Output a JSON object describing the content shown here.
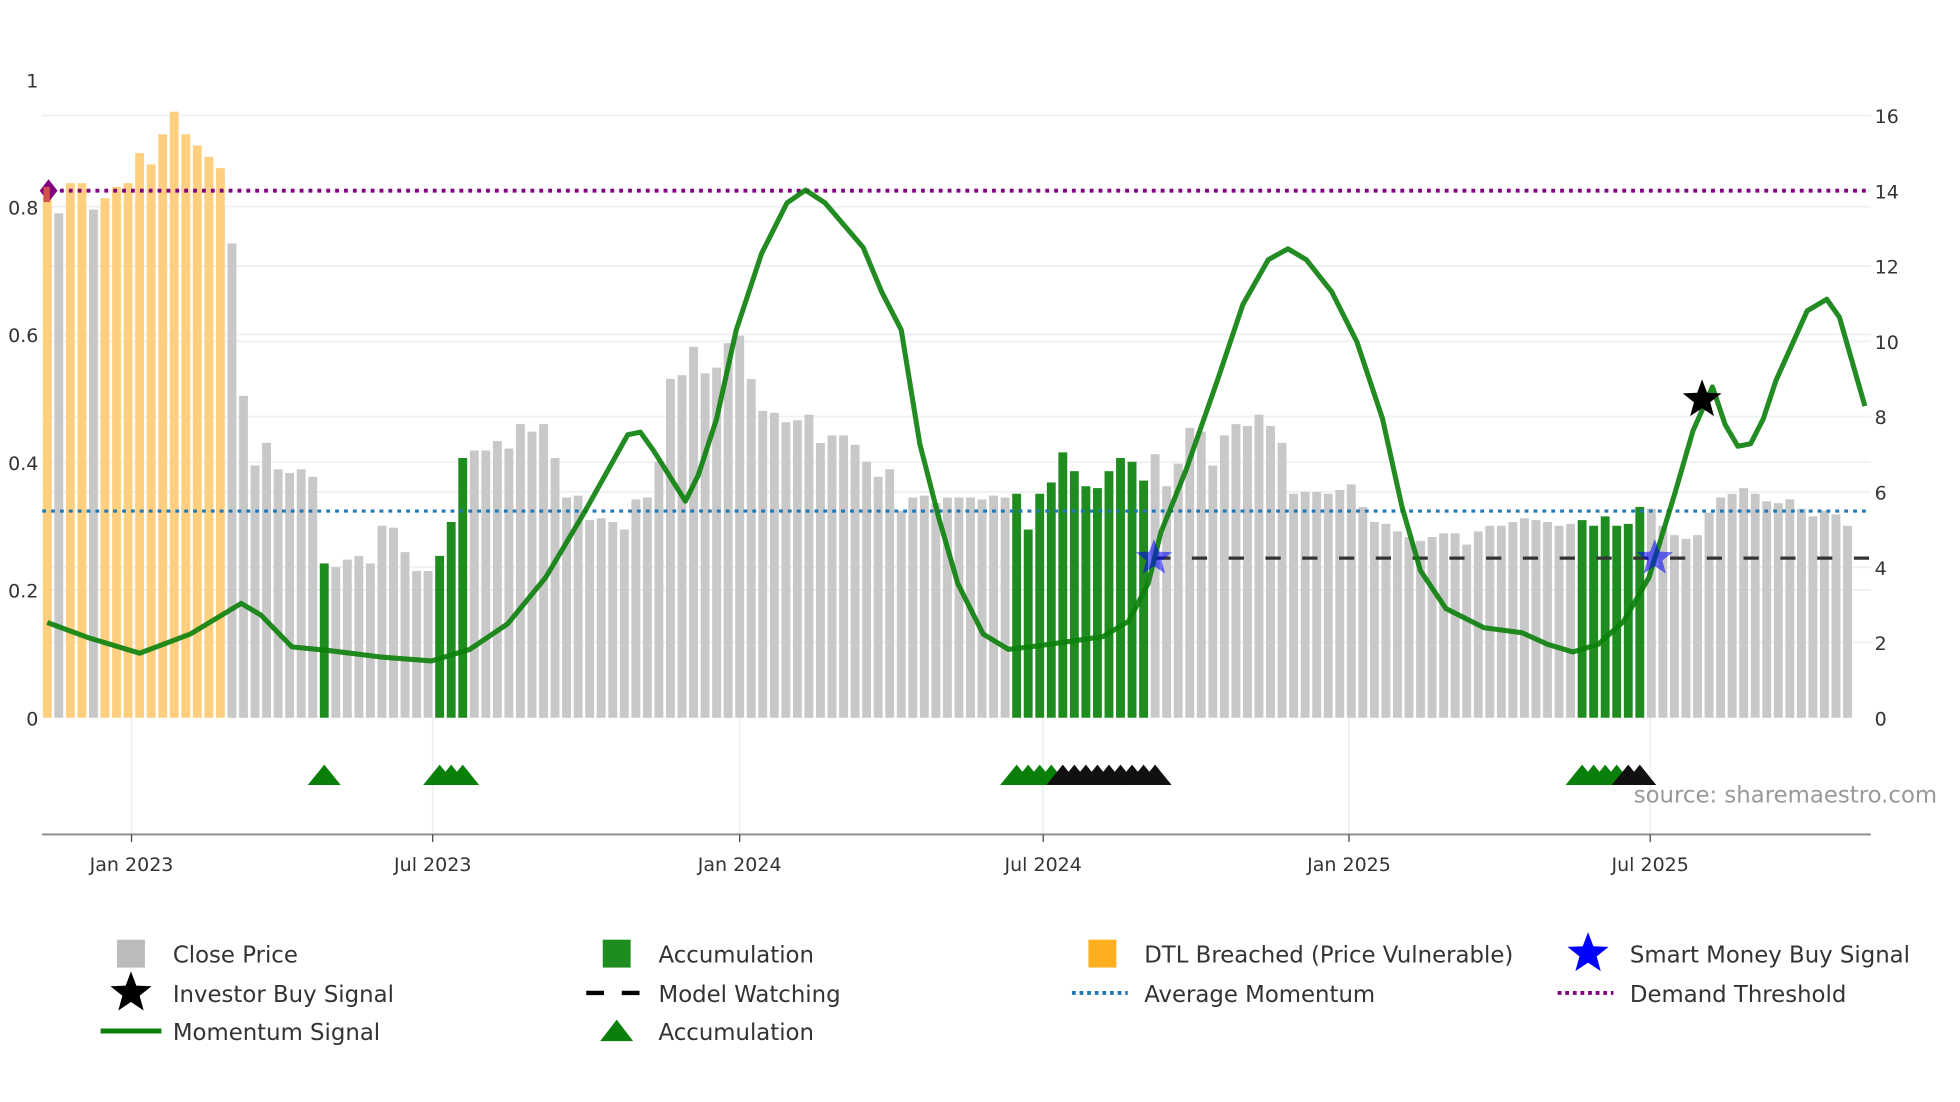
{
  "chart_data": {
    "type": "bar",
    "title": "",
    "x_unit": "week index",
    "left_axis": {
      "ylim": [
        0,
        1
      ],
      "ticks": [
        "0",
        "0.2",
        "0.4",
        "0.6",
        "0.8",
        "1"
      ]
    },
    "right_axis": {
      "ylim": [
        0,
        16
      ],
      "ticks": [
        "0",
        "2",
        "4",
        "6",
        "8",
        "10",
        "12",
        "14",
        "16"
      ]
    },
    "x_ticks": [
      "Jan 2023",
      "Jul 2023",
      "Jan 2024",
      "Jul 2024",
      "Jan 2025",
      "Jul 2025"
    ],
    "x_tick_positions": [
      7.3,
      33.4,
      60.0,
      86.3,
      112.8,
      138.9
    ],
    "grid": true,
    "close_price": [
      14.0,
      13.4,
      14.2,
      14.2,
      13.5,
      13.8,
      14.1,
      14.2,
      15.0,
      14.7,
      15.5,
      16.1,
      15.5,
      15.2,
      14.9,
      14.6,
      12.6,
      8.55,
      6.7,
      7.3,
      6.6,
      6.5,
      6.6,
      6.4,
      4.1,
      4.0,
      4.2,
      4.3,
      4.1,
      5.1,
      5.05,
      4.4,
      3.9,
      3.9,
      4.3,
      5.2,
      6.9,
      7.1,
      7.1,
      7.35,
      7.15,
      7.8,
      7.6,
      7.8,
      6.9,
      5.85,
      5.9,
      5.25,
      5.3,
      5.2,
      5.0,
      5.8,
      5.85,
      6.8,
      9.0,
      9.1,
      9.85,
      9.15,
      9.3,
      9.95,
      10.15,
      9.0,
      8.15,
      8.1,
      7.85,
      7.9,
      8.05,
      7.3,
      7.5,
      7.5,
      7.25,
      6.8,
      6.4,
      6.6,
      5.5,
      5.85,
      5.9,
      5.7,
      5.85,
      5.85,
      5.85,
      5.8,
      5.9,
      5.85,
      5.95,
      5.0,
      5.95,
      6.25,
      7.05,
      6.55,
      6.15,
      6.1,
      6.55,
      6.9,
      6.8,
      6.3,
      7.0,
      6.15,
      6.75,
      7.7,
      7.6,
      6.7,
      7.5,
      7.8,
      7.75,
      8.05,
      7.75,
      7.3,
      5.95,
      6.0,
      6.0,
      5.95,
      6.05,
      6.2,
      5.6,
      5.2,
      5.15,
      4.95,
      4.8,
      4.7,
      4.8,
      4.9,
      4.9,
      4.6,
      4.95,
      5.1,
      5.1,
      5.2,
      5.3,
      5.25,
      5.2,
      5.1,
      5.15,
      5.25,
      5.1,
      5.35,
      5.1,
      5.15,
      5.6,
      5.55,
      5.1,
      4.85,
      4.75,
      4.85,
      5.45,
      5.85,
      5.95,
      6.1,
      5.95,
      5.75,
      5.7,
      5.8,
      5.55,
      5.35,
      5.5,
      5.4,
      5.1
    ],
    "dtl_breached_bars": [
      0,
      2,
      3,
      5,
      6,
      7,
      8,
      9,
      10,
      11,
      12,
      13,
      14,
      15
    ],
    "accumulation_bars": [
      24,
      34,
      35,
      36,
      84,
      85,
      86,
      87,
      88,
      89,
      90,
      91,
      92,
      93,
      94,
      95,
      133,
      134,
      135,
      136,
      137,
      138
    ],
    "momentum_signal": [
      [
        0,
        0.149
      ],
      [
        3.6,
        0.125
      ],
      [
        8,
        0.101
      ],
      [
        12.4,
        0.131
      ],
      [
        16.8,
        0.179
      ],
      [
        18.5,
        0.161
      ],
      [
        21.2,
        0.111
      ],
      [
        24.5,
        0.105
      ],
      [
        28.9,
        0.095
      ],
      [
        33.3,
        0.089
      ],
      [
        36.6,
        0.107
      ],
      [
        39.9,
        0.147
      ],
      [
        43.2,
        0.22
      ],
      [
        46.5,
        0.32
      ],
      [
        50.3,
        0.443
      ],
      [
        51.4,
        0.447
      ],
      [
        52.5,
        0.419
      ],
      [
        55.3,
        0.339
      ],
      [
        56.4,
        0.379
      ],
      [
        58,
        0.468
      ],
      [
        59.7,
        0.607
      ],
      [
        61.9,
        0.727
      ],
      [
        64.1,
        0.806
      ],
      [
        65.7,
        0.826
      ],
      [
        67.4,
        0.806
      ],
      [
        70.7,
        0.736
      ],
      [
        72.3,
        0.667
      ],
      [
        74,
        0.607
      ],
      [
        75.6,
        0.429
      ],
      [
        77.3,
        0.31
      ],
      [
        78.9,
        0.21
      ],
      [
        81.1,
        0.131
      ],
      [
        83.3,
        0.107
      ],
      [
        86,
        0.113
      ],
      [
        91.5,
        0.127
      ],
      [
        93.7,
        0.151
      ],
      [
        95.4,
        0.21
      ],
      [
        96.5,
        0.29
      ],
      [
        98.7,
        0.389
      ],
      [
        101.4,
        0.528
      ],
      [
        103.6,
        0.647
      ],
      [
        105.8,
        0.717
      ],
      [
        107.5,
        0.734
      ],
      [
        109.1,
        0.717
      ],
      [
        111.3,
        0.667
      ],
      [
        113.5,
        0.588
      ],
      [
        115.7,
        0.468
      ],
      [
        117.4,
        0.33
      ],
      [
        119,
        0.23
      ],
      [
        121.2,
        0.171
      ],
      [
        124.5,
        0.141
      ],
      [
        127.8,
        0.133
      ],
      [
        130,
        0.115
      ],
      [
        132.2,
        0.103
      ],
      [
        134.4,
        0.115
      ],
      [
        136.6,
        0.151
      ],
      [
        138.8,
        0.22
      ],
      [
        141,
        0.349
      ],
      [
        142.6,
        0.449
      ],
      [
        144.3,
        0.518
      ],
      [
        145.4,
        0.459
      ],
      [
        146.5,
        0.425
      ],
      [
        147.6,
        0.429
      ],
      [
        148.7,
        0.468
      ],
      [
        149.8,
        0.528
      ],
      [
        152.5,
        0.637
      ],
      [
        154.2,
        0.655
      ],
      [
        155.3,
        0.627
      ],
      [
        157.5,
        0.488
      ]
    ],
    "demand_threshold": 14.0,
    "average_momentum": 5.49,
    "model_watching": {
      "level": 4.24,
      "from_index": 96
    },
    "smart_money_buy_signals": [
      [
        95.9,
        4.24
      ],
      [
        139.3,
        4.24
      ]
    ],
    "investor_buy_signals": [
      [
        143.4,
        8.45
      ]
    ],
    "accumulation_triangles_green": [
      24,
      34,
      35,
      36,
      84,
      85,
      86,
      87,
      133,
      134,
      135,
      136
    ],
    "accumulation_triangles_black": [
      88,
      89,
      90,
      91,
      92,
      93,
      94,
      95,
      96,
      137,
      138
    ],
    "colors": {
      "close": "#c8c8c8",
      "accumulation": "#1f8c1f",
      "dtl": "#ffcf80",
      "momentum": "#0a800a",
      "smart_money": "#0000ff",
      "average": "#1f77b4",
      "demand": "#800080"
    },
    "legend_position": "bottom"
  },
  "legend": [
    {
      "label": "Close Price",
      "symbol": "gray-bar"
    },
    {
      "label": "Accumulation",
      "symbol": "green-bar"
    },
    {
      "label": "DTL Breached (Price Vulnerable)",
      "symbol": "orange-bar"
    },
    {
      "label": "Smart Money Buy Signal",
      "symbol": "blue-star"
    },
    {
      "label": "Investor Buy Signal",
      "symbol": "black-star"
    },
    {
      "label": "Model Watching",
      "symbol": "black-dash"
    },
    {
      "label": "Average Momentum",
      "symbol": "blue-dot"
    },
    {
      "label": "Demand Threshold",
      "symbol": "purple-dot"
    },
    {
      "label": "Momentum Signal",
      "symbol": "green-line"
    },
    {
      "label": "Accumulation",
      "symbol": "green-triangle"
    }
  ],
  "source": "source: sharemaestro.com"
}
